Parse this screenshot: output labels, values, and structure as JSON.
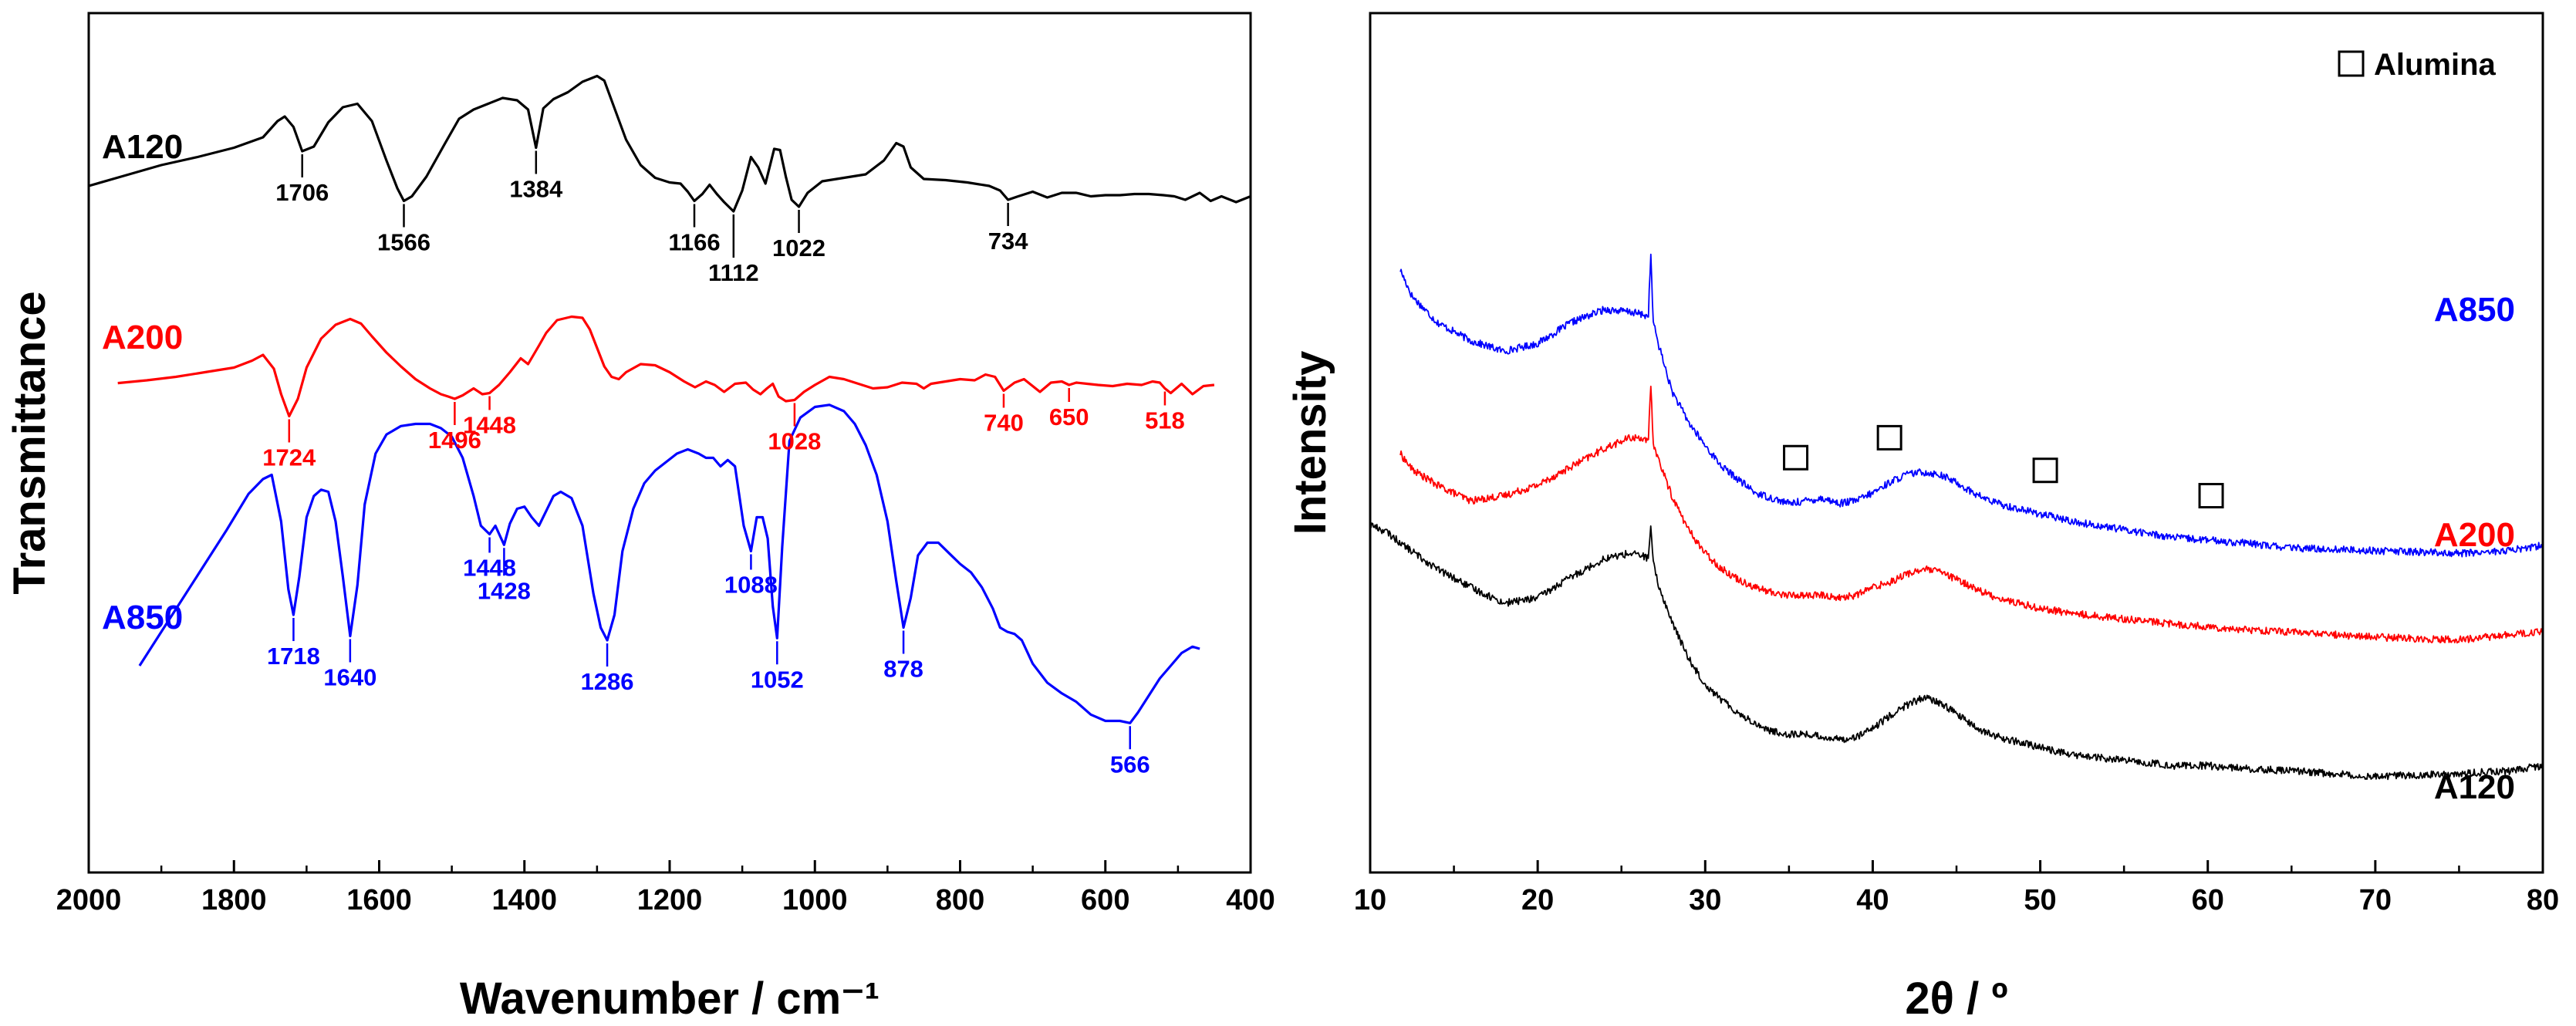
{
  "chart_data": [
    {
      "type": "line",
      "title": "",
      "xlabel": "Wavenumber / cm⁻¹",
      "ylabel": "Transmittance",
      "xlim": [
        2000,
        400
      ],
      "x_reversed": true,
      "xticks": [
        2000,
        1800,
        1600,
        1400,
        1200,
        1000,
        800,
        600,
        400
      ],
      "yticks": "none",
      "series": [
        {
          "name": "A120",
          "color": "#000000",
          "x": [
            2000,
            1950,
            1900,
            1850,
            1800,
            1760,
            1740,
            1730,
            1718,
            1706,
            1690,
            1670,
            1650,
            1630,
            1610,
            1590,
            1575,
            1566,
            1555,
            1535,
            1510,
            1490,
            1470,
            1450,
            1430,
            1410,
            1395,
            1384,
            1374,
            1360,
            1340,
            1320,
            1300,
            1290,
            1280,
            1260,
            1240,
            1220,
            1200,
            1185,
            1175,
            1166,
            1155,
            1145,
            1135,
            1125,
            1112,
            1100,
            1088,
            1078,
            1068,
            1056,
            1048,
            1040,
            1032,
            1022,
            1010,
            990,
            960,
            930,
            905,
            888,
            878,
            868,
            850,
            820,
            790,
            760,
            745,
            734,
            720,
            700,
            680,
            660,
            640,
            620,
            600,
            580,
            560,
            540,
            520,
            505,
            490,
            470,
            455,
            440,
            420,
            400
          ],
          "y": [
            1.8,
            2.25,
            2.7,
            3.05,
            3.45,
            3.9,
            4.6,
            4.8,
            4.35,
            3.3,
            3.5,
            4.55,
            5.2,
            5.35,
            4.6,
            2.9,
            1.7,
            1.15,
            1.35,
            2.2,
            3.6,
            4.7,
            5.1,
            5.35,
            5.6,
            5.5,
            5.1,
            3.45,
            5.15,
            5.55,
            5.85,
            6.3,
            6.55,
            6.35,
            5.5,
            3.8,
            2.7,
            2.15,
            1.95,
            1.9,
            1.55,
            1.15,
            1.45,
            1.85,
            1.45,
            1.1,
            0.7,
            1.6,
            3.05,
            2.6,
            1.9,
            3.4,
            3.35,
            2.2,
            1.2,
            0.9,
            1.5,
            2.0,
            2.15,
            2.3,
            2.9,
            3.65,
            3.5,
            2.6,
            2.1,
            2.05,
            1.95,
            1.8,
            1.6,
            1.2,
            1.35,
            1.55,
            1.3,
            1.5,
            1.5,
            1.35,
            1.4,
            1.4,
            1.45,
            1.45,
            1.4,
            1.35,
            1.2,
            1.5,
            1.15,
            1.35,
            1.1,
            1.35
          ]
        },
        {
          "name": "A200",
          "color": "#ff0000",
          "x": [
            1960,
            1920,
            1880,
            1840,
            1800,
            1775,
            1760,
            1745,
            1735,
            1724,
            1712,
            1700,
            1680,
            1660,
            1640,
            1625,
            1610,
            1590,
            1570,
            1550,
            1530,
            1515,
            1505,
            1496,
            1485,
            1470,
            1458,
            1448,
            1435,
            1420,
            1405,
            1395,
            1380,
            1370,
            1355,
            1335,
            1320,
            1310,
            1300,
            1290,
            1280,
            1270,
            1260,
            1240,
            1220,
            1200,
            1180,
            1165,
            1150,
            1138,
            1125,
            1110,
            1095,
            1085,
            1075,
            1066,
            1058,
            1050,
            1040,
            1028,
            1015,
            1000,
            980,
            960,
            940,
            920,
            900,
            880,
            860,
            850,
            840,
            820,
            800,
            780,
            765,
            752,
            740,
            725,
            712,
            700,
            690,
            675,
            660,
            650,
            640,
            625,
            610,
            590,
            570,
            550,
            535,
            525,
            518,
            510,
            495,
            480,
            465,
            450
          ],
          "y": [
            0.28,
            0.4,
            0.55,
            0.75,
            0.95,
            1.25,
            1.5,
            0.9,
            -0.2,
            -1.15,
            -0.4,
            0.95,
            2.2,
            2.8,
            3.05,
            2.85,
            2.3,
            1.6,
            1.0,
            0.45,
            0.05,
            -0.2,
            -0.3,
            -0.4,
            -0.25,
            0.05,
            -0.2,
            -0.15,
            0.2,
            0.75,
            1.35,
            1.1,
            1.9,
            2.45,
            3.0,
            3.15,
            3.1,
            2.6,
            1.8,
            1.0,
            0.55,
            0.45,
            0.75,
            1.1,
            1.05,
            0.75,
            0.35,
            0.1,
            0.35,
            0.2,
            -0.1,
            0.25,
            0.3,
            0.0,
            -0.2,
            0.05,
            0.25,
            -0.3,
            -0.5,
            -0.45,
            -0.1,
            0.2,
            0.55,
            0.45,
            0.25,
            0.05,
            0.1,
            0.3,
            0.25,
            0.05,
            0.25,
            0.35,
            0.45,
            0.4,
            0.65,
            0.55,
            -0.05,
            0.3,
            0.45,
            0.15,
            -0.1,
            0.3,
            0.35,
            0.2,
            0.3,
            0.25,
            0.2,
            0.15,
            0.25,
            0.2,
            0.35,
            0.3,
            0.05,
            -0.15,
            0.25,
            -0.2,
            0.15,
            0.2
          ]
        },
        {
          "name": "A850",
          "color": "#0000ff",
          "x": [
            1930,
            1900,
            1870,
            1840,
            1810,
            1780,
            1760,
            1748,
            1735,
            1725,
            1718,
            1710,
            1700,
            1690,
            1680,
            1670,
            1660,
            1650,
            1640,
            1630,
            1620,
            1605,
            1590,
            1570,
            1550,
            1530,
            1515,
            1500,
            1485,
            1470,
            1460,
            1448,
            1440,
            1428,
            1420,
            1410,
            1400,
            1390,
            1380,
            1370,
            1360,
            1350,
            1335,
            1320,
            1305,
            1295,
            1286,
            1276,
            1265,
            1250,
            1235,
            1220,
            1205,
            1190,
            1175,
            1160,
            1150,
            1140,
            1130,
            1120,
            1110,
            1098,
            1088,
            1080,
            1072,
            1065,
            1058,
            1052,
            1045,
            1035,
            1020,
            1000,
            980,
            960,
            945,
            930,
            915,
            900,
            888,
            878,
            868,
            858,
            845,
            830,
            815,
            800,
            785,
            770,
            755,
            745,
            735,
            725,
            715,
            700,
            680,
            660,
            640,
            620,
            600,
            580,
            566,
            555,
            540,
            525,
            510,
            495,
            480,
            470
          ],
          "y": [
            -6.2,
            -5.4,
            -4.6,
            -3.8,
            -3.0,
            -2.15,
            -1.8,
            -1.7,
            -2.8,
            -4.4,
            -5.0,
            -4.1,
            -2.7,
            -2.2,
            -2.05,
            -2.1,
            -2.8,
            -4.1,
            -5.5,
            -4.3,
            -2.4,
            -1.2,
            -0.75,
            -0.55,
            -0.5,
            -0.5,
            -0.6,
            -0.8,
            -1.3,
            -2.2,
            -2.9,
            -3.1,
            -2.9,
            -3.35,
            -2.85,
            -2.5,
            -2.45,
            -2.7,
            -2.9,
            -2.55,
            -2.2,
            -2.1,
            -2.25,
            -2.9,
            -4.5,
            -5.3,
            -5.6,
            -5.0,
            -3.5,
            -2.5,
            -1.9,
            -1.6,
            -1.4,
            -1.2,
            -1.1,
            -1.2,
            -1.3,
            -1.3,
            -1.5,
            -1.35,
            -1.5,
            -2.9,
            -3.5,
            -2.7,
            -2.7,
            -3.2,
            -4.8,
            -5.55,
            -3.4,
            -0.9,
            -0.35,
            -0.1,
            -0.05,
            -0.2,
            -0.5,
            -1.0,
            -1.7,
            -2.8,
            -4.2,
            -5.3,
            -4.6,
            -3.6,
            -3.3,
            -3.3,
            -3.55,
            -3.8,
            -4.0,
            -4.35,
            -4.85,
            -5.3,
            -5.4,
            -5.45,
            -5.6,
            -6.15,
            -6.6,
            -6.85,
            -7.05,
            -7.35,
            -7.5,
            -7.5,
            -7.55,
            -7.3,
            -6.9,
            -6.5,
            -6.2,
            -5.9,
            -5.75,
            -5.8
          ]
        }
      ],
      "annotations": [
        {
          "series": "A120",
          "x": 1706,
          "label": "1706"
        },
        {
          "series": "A120",
          "x": 1566,
          "label": "1566"
        },
        {
          "series": "A120",
          "x": 1384,
          "label": "1384"
        },
        {
          "series": "A120",
          "x": 1166,
          "label": "1166"
        },
        {
          "series": "A120",
          "x": 1112,
          "label": "1112"
        },
        {
          "series": "A120",
          "x": 1022,
          "label": "1022"
        },
        {
          "series": "A120",
          "x": 734,
          "label": "734"
        },
        {
          "series": "A200",
          "x": 1724,
          "label": "1724"
        },
        {
          "series": "A200",
          "x": 1496,
          "label": "1496"
        },
        {
          "series": "A200",
          "x": 1448,
          "label": "1448"
        },
        {
          "series": "A200",
          "x": 1028,
          "label": "1028"
        },
        {
          "series": "A200",
          "x": 740,
          "label": "740"
        },
        {
          "series": "A200",
          "x": 650,
          "label": "650"
        },
        {
          "series": "A200",
          "x": 518,
          "label": "518"
        },
        {
          "series": "A850",
          "x": 1718,
          "label": "1718"
        },
        {
          "series": "A850",
          "x": 1640,
          "label": "1640"
        },
        {
          "series": "A850",
          "x": 1448,
          "label": "1448"
        },
        {
          "series": "A850",
          "x": 1428,
          "label": "1428"
        },
        {
          "series": "A850",
          "x": 1286,
          "label": "1286"
        },
        {
          "series": "A850",
          "x": 1088,
          "label": "1088"
        },
        {
          "series": "A850",
          "x": 1052,
          "label": "1052"
        },
        {
          "series": "A850",
          "x": 878,
          "label": "878"
        },
        {
          "series": "A850",
          "x": 566,
          "label": "566"
        }
      ]
    },
    {
      "type": "line",
      "title": "",
      "xlabel": "2θ / º",
      "ylabel": "Intensity",
      "xlim": [
        10,
        80
      ],
      "xticks": [
        10,
        20,
        30,
        40,
        50,
        60,
        70,
        80
      ],
      "yticks": "none",
      "series": [
        {
          "name": "A850",
          "color": "#0000ff",
          "noise": 0.07,
          "x": [
            11.8,
            12.5,
            14,
            16,
            18,
            20,
            22,
            24,
            25.5,
            26.3,
            26.6,
            26.75,
            26.9,
            27.2,
            28,
            29,
            30,
            31,
            32,
            33,
            34,
            35,
            36,
            37,
            38,
            39,
            40,
            41,
            42,
            43,
            44,
            45,
            46,
            47,
            48,
            50,
            52,
            55,
            58,
            60,
            62,
            65,
            70,
            75,
            78,
            80
          ],
          "y": [
            7.5,
            7.0,
            6.5,
            6.15,
            5.95,
            6.1,
            6.5,
            6.75,
            6.7,
            6.65,
            6.6,
            7.8,
            6.5,
            6.1,
            5.2,
            4.6,
            4.15,
            3.75,
            3.5,
            3.25,
            3.15,
            3.05,
            3.1,
            3.15,
            3.05,
            3.1,
            3.25,
            3.45,
            3.6,
            3.65,
            3.6,
            3.45,
            3.25,
            3.1,
            3.0,
            2.85,
            2.7,
            2.55,
            2.4,
            2.35,
            2.3,
            2.2,
            2.15,
            2.1,
            2.15,
            2.25
          ]
        },
        {
          "name": "A200",
          "color": "#ff0000",
          "noise": 0.07,
          "x": [
            11.8,
            12.5,
            14,
            16,
            18,
            20,
            22,
            24,
            25.5,
            26.3,
            26.6,
            26.75,
            26.9,
            27.2,
            28,
            29,
            30,
            31,
            32,
            33,
            34,
            35,
            36,
            37,
            38,
            39,
            40,
            41,
            42,
            43,
            44,
            45,
            46,
            47,
            48,
            50,
            52,
            55,
            58,
            60,
            62,
            65,
            70,
            75,
            78,
            80
          ],
          "y": [
            4.0,
            3.7,
            3.4,
            3.1,
            3.2,
            3.4,
            3.75,
            4.1,
            4.3,
            4.3,
            4.2,
            5.3,
            4.2,
            3.9,
            3.2,
            2.55,
            2.1,
            1.8,
            1.6,
            1.45,
            1.35,
            1.3,
            1.3,
            1.3,
            1.25,
            1.3,
            1.45,
            1.55,
            1.7,
            1.8,
            1.75,
            1.6,
            1.45,
            1.3,
            1.2,
            1.05,
            0.95,
            0.85,
            0.75,
            0.7,
            0.65,
            0.6,
            0.5,
            0.45,
            0.55,
            0.6
          ]
        },
        {
          "name": "A120",
          "color": "#000000",
          "noise": 0.07,
          "x": [
            10,
            11,
            12,
            14,
            16,
            18,
            20,
            22,
            24,
            25.5,
            26.3,
            26.6,
            26.75,
            26.9,
            27.2,
            28,
            29,
            30,
            31,
            32,
            33,
            34,
            35,
            36,
            37,
            38,
            39,
            40,
            41,
            42,
            43,
            44,
            45,
            46,
            47,
            48,
            50,
            52,
            55,
            58,
            60,
            62,
            65,
            70,
            75,
            78,
            80
          ],
          "y": [
            2.65,
            2.5,
            2.25,
            1.8,
            1.45,
            1.15,
            1.25,
            1.65,
            2.0,
            2.1,
            2.05,
            2.0,
            2.6,
            1.9,
            1.5,
            0.8,
            0.1,
            -0.4,
            -0.7,
            -0.95,
            -1.15,
            -1.3,
            -1.35,
            -1.35,
            -1.4,
            -1.45,
            -1.4,
            -1.25,
            -1.0,
            -0.8,
            -0.65,
            -0.75,
            -0.95,
            -1.2,
            -1.35,
            -1.45,
            -1.6,
            -1.75,
            -1.85,
            -1.95,
            -1.95,
            -2.0,
            -2.05,
            -2.15,
            -2.1,
            -2.05,
            -1.95
          ]
        }
      ],
      "markers": [
        {
          "series": "A850",
          "x": 35.4,
          "symbol": "□"
        },
        {
          "series": "A850",
          "x": 41.0,
          "symbol": "□"
        },
        {
          "series": "A850",
          "x": 50.3,
          "symbol": "□"
        },
        {
          "series": "A850",
          "x": 60.2,
          "symbol": "□"
        }
      ],
      "legend": {
        "symbol": "□",
        "label": "Alumina",
        "position": "top-right"
      }
    }
  ]
}
